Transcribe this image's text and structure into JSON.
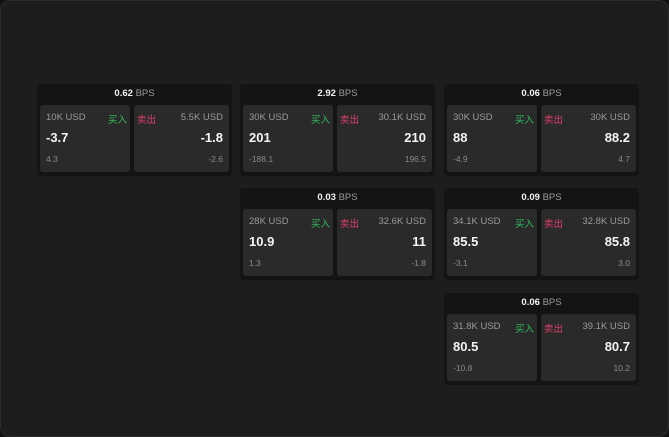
{
  "unit": "BPS",
  "buy_label": "买入",
  "sell_label": "卖出",
  "colors": {
    "buy": "#2fbf5f",
    "sell": "#e0406a",
    "panel": "#141414",
    "card": "#2a2a2a"
  },
  "panels": [
    {
      "spread": "0.62",
      "buy": {
        "size": "10K USD",
        "price": "-3.7",
        "change": "4.3"
      },
      "sell": {
        "size": "5.5K USD",
        "price": "-1.8",
        "change": "-2.6"
      }
    },
    {
      "spread": "2.92",
      "buy": {
        "size": "30K USD",
        "price": "201",
        "change": "-188.1"
      },
      "sell": {
        "size": "30.1K USD",
        "price": "210",
        "change": "196.5"
      }
    },
    {
      "spread": "0.06",
      "buy": {
        "size": "30K USD",
        "price": "88",
        "change": "-4.9"
      },
      "sell": {
        "size": "30K USD",
        "price": "88.2",
        "change": "4.7"
      }
    },
    {
      "spread": "0.03",
      "buy": {
        "size": "28K USD",
        "price": "10.9",
        "change": "1.3"
      },
      "sell": {
        "size": "32.6K USD",
        "price": "11",
        "change": "-1.8"
      }
    },
    {
      "spread": "0.09",
      "buy": {
        "size": "34.1K USD",
        "price": "85.5",
        "change": "-3.1"
      },
      "sell": {
        "size": "32.8K USD",
        "price": "85.8",
        "change": "3.0"
      }
    },
    {
      "spread": "0.06",
      "buy": {
        "size": "31.8K USD",
        "price": "80.5",
        "change": "-10.8"
      },
      "sell": {
        "size": "39.1K USD",
        "price": "80.7",
        "change": "10.2"
      }
    }
  ]
}
